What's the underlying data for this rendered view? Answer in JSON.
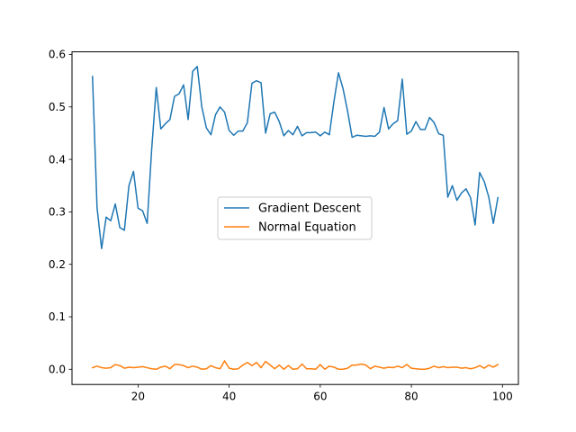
{
  "chart_data": {
    "type": "line",
    "title": "",
    "xlabel": "",
    "ylabel": "",
    "xlim": [
      5.5,
      103.5
    ],
    "ylim": [
      -0.029,
      0.605
    ],
    "x_ticks": [
      20,
      40,
      60,
      80,
      100
    ],
    "x_tick_labels": [
      "20",
      "40",
      "60",
      "80",
      "100"
    ],
    "y_ticks": [
      0.0,
      0.1,
      0.2,
      0.3,
      0.4,
      0.5,
      0.6
    ],
    "y_tick_labels": [
      "0.0",
      "0.1",
      "0.2",
      "0.3",
      "0.4",
      "0.5",
      "0.6"
    ],
    "grid": false,
    "legend_position": "center",
    "x_start": 10,
    "series": [
      {
        "name": "Gradient Descent",
        "color": "#1f77b4",
        "values": [
          0.558,
          0.308,
          0.23,
          0.29,
          0.283,
          0.315,
          0.27,
          0.265,
          0.35,
          0.377,
          0.307,
          0.302,
          0.278,
          0.42,
          0.537,
          0.458,
          0.468,
          0.476,
          0.52,
          0.525,
          0.542,
          0.476,
          0.568,
          0.577,
          0.5,
          0.46,
          0.447,
          0.485,
          0.5,
          0.49,
          0.455,
          0.446,
          0.454,
          0.454,
          0.47,
          0.545,
          0.55,
          0.546,
          0.45,
          0.487,
          0.49,
          0.472,
          0.445,
          0.455,
          0.447,
          0.463,
          0.445,
          0.451,
          0.451,
          0.452,
          0.445,
          0.452,
          0.447,
          0.51,
          0.565,
          0.535,
          0.492,
          0.442,
          0.446,
          0.445,
          0.444,
          0.445,
          0.444,
          0.452,
          0.499,
          0.458,
          0.468,
          0.474,
          0.553,
          0.448,
          0.454,
          0.472,
          0.457,
          0.457,
          0.48,
          0.47,
          0.449,
          0.446,
          0.328,
          0.35,
          0.322,
          0.336,
          0.344,
          0.327,
          0.275,
          0.375,
          0.358,
          0.328,
          0.278,
          0.327
        ]
      },
      {
        "name": "Normal Equation",
        "color": "#ff7f0e",
        "values": [
          0.003,
          0.006,
          0.003,
          0.002,
          0.003,
          0.009,
          0.007,
          0.002,
          0.004,
          0.003,
          0.004,
          0.005,
          0.003,
          0.001,
          0.0,
          0.004,
          0.006,
          0.001,
          0.009,
          0.009,
          0.007,
          0.003,
          0.006,
          0.004,
          0.0,
          0.001,
          0.007,
          0.003,
          0.001,
          0.016,
          0.002,
          0.0,
          0.001,
          0.008,
          0.013,
          0.007,
          0.013,
          0.003,
          0.015,
          0.008,
          0.001,
          0.008,
          0.0,
          0.007,
          0.0,
          0.001,
          0.01,
          0.001,
          0.001,
          0.0,
          0.009,
          0.0,
          0.006,
          0.004,
          0.0,
          0.0,
          0.002,
          0.008,
          0.008,
          0.01,
          0.008,
          0.001,
          0.006,
          0.004,
          0.002,
          0.004,
          0.003,
          0.006,
          0.003,
          0.009,
          0.002,
          0.001,
          0.0,
          0.0,
          0.002,
          0.006,
          0.003,
          0.005,
          0.003,
          0.004,
          0.004,
          0.002,
          0.003,
          0.001,
          0.003,
          0.007,
          0.002,
          0.008,
          0.004,
          0.009
        ]
      }
    ]
  }
}
